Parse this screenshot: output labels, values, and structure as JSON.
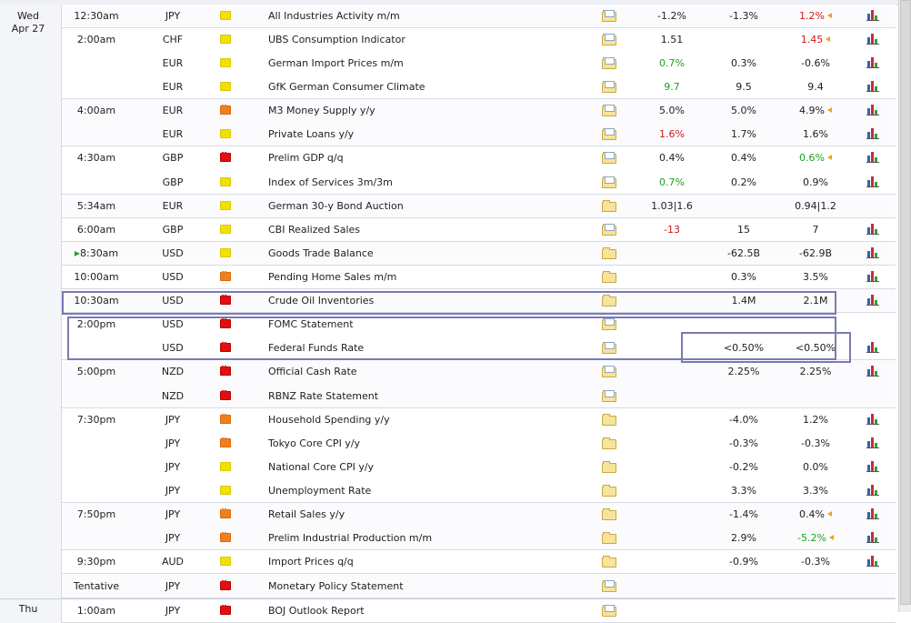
{
  "days": [
    {
      "line1": "Wed",
      "line2": "Apr 27"
    },
    {
      "line1": "Thu",
      "line2": ""
    }
  ],
  "colors": {
    "green": "#1ea01e",
    "red": "#d01818",
    "highlight": "#7a7ab4"
  },
  "icons": {
    "details": "folder-document-icon",
    "chart": "bar-chart-icon",
    "revised": "revised-arrow-icon",
    "live": "play-arrow-icon"
  },
  "events": [
    {
      "time": "12:30am",
      "currency": "JPY",
      "impact": "low",
      "title": "All Industries Activity m/m",
      "doc": true,
      "actual": "-1.2%",
      "forecast": "-1.3%",
      "previous": "1.2%",
      "prev_color": "red",
      "prev_revised": true,
      "chart": true
    },
    {
      "time": "2:00am",
      "currency": "CHF",
      "impact": "low",
      "title": "UBS Consumption Indicator",
      "doc": true,
      "actual": "1.51",
      "forecast": "",
      "previous": "1.45",
      "prev_color": "red",
      "prev_revised": true,
      "chart": true
    },
    {
      "time": "",
      "currency": "EUR",
      "impact": "low",
      "title": "German Import Prices m/m",
      "doc": true,
      "actual": "0.7%",
      "actual_color": "green",
      "forecast": "0.3%",
      "previous": "-0.6%",
      "chart": true
    },
    {
      "time": "",
      "currency": "EUR",
      "impact": "low",
      "title": "GfK German Consumer Climate",
      "doc": true,
      "actual": "9.7",
      "actual_color": "green",
      "forecast": "9.5",
      "previous": "9.4",
      "chart": true
    },
    {
      "time": "4:00am",
      "currency": "EUR",
      "impact": "med",
      "title": "M3 Money Supply y/y",
      "doc": true,
      "actual": "5.0%",
      "forecast": "5.0%",
      "previous": "4.9%",
      "prev_revised": true,
      "chart": true
    },
    {
      "time": "",
      "currency": "EUR",
      "impact": "low",
      "title": "Private Loans y/y",
      "doc": true,
      "actual": "1.6%",
      "actual_color": "red",
      "forecast": "1.7%",
      "previous": "1.6%",
      "chart": true
    },
    {
      "time": "4:30am",
      "currency": "GBP",
      "impact": "high",
      "title": "Prelim GDP q/q",
      "doc": true,
      "actual": "0.4%",
      "forecast": "0.4%",
      "previous": "0.6%",
      "prev_color": "green",
      "prev_revised": true,
      "chart": true
    },
    {
      "time": "",
      "currency": "GBP",
      "impact": "low",
      "title": "Index of Services 3m/3m",
      "doc": true,
      "actual": "0.7%",
      "actual_color": "green",
      "forecast": "0.2%",
      "previous": "0.9%",
      "chart": true
    },
    {
      "time": "5:34am",
      "currency": "EUR",
      "impact": "low",
      "title": "German 30-y Bond Auction",
      "doc": false,
      "actual": "1.03|1.6",
      "forecast": "",
      "previous": "0.94|1.2",
      "chart": false
    },
    {
      "time": "6:00am",
      "currency": "GBP",
      "impact": "low",
      "title": "CBI Realized Sales",
      "doc": true,
      "actual": "-13",
      "actual_color": "red",
      "forecast": "15",
      "previous": "7",
      "chart": true
    },
    {
      "time": "8:30am",
      "time_live": true,
      "currency": "USD",
      "impact": "low",
      "title": "Goods Trade Balance",
      "doc": false,
      "actual": "",
      "forecast": "-62.5B",
      "previous": "-62.9B",
      "chart": true
    },
    {
      "time": "10:00am",
      "currency": "USD",
      "impact": "med",
      "title": "Pending Home Sales m/m",
      "doc": false,
      "actual": "",
      "forecast": "0.3%",
      "previous": "3.5%",
      "chart": true
    },
    {
      "time": "10:30am",
      "currency": "USD",
      "impact": "high",
      "title": "Crude Oil Inventories",
      "doc": false,
      "actual": "",
      "forecast": "1.4M",
      "previous": "2.1M",
      "chart": true
    },
    {
      "time": "2:00pm",
      "currency": "USD",
      "impact": "high",
      "title": "FOMC Statement",
      "doc": true,
      "actual": "",
      "forecast": "",
      "previous": "",
      "chart": false
    },
    {
      "time": "",
      "currency": "USD",
      "impact": "high",
      "title": "Federal Funds Rate",
      "doc": true,
      "actual": "",
      "forecast": "<0.50%",
      "previous": "<0.50%",
      "chart": true
    },
    {
      "time": "5:00pm",
      "currency": "NZD",
      "impact": "high",
      "title": "Official Cash Rate",
      "doc": true,
      "actual": "",
      "forecast": "2.25%",
      "previous": "2.25%",
      "chart": true
    },
    {
      "time": "",
      "currency": "NZD",
      "impact": "high",
      "title": "RBNZ Rate Statement",
      "doc": true,
      "actual": "",
      "forecast": "",
      "previous": "",
      "chart": false
    },
    {
      "time": "7:30pm",
      "currency": "JPY",
      "impact": "med",
      "title": "Household Spending y/y",
      "doc": false,
      "actual": "",
      "forecast": "-4.0%",
      "previous": "1.2%",
      "chart": true
    },
    {
      "time": "",
      "currency": "JPY",
      "impact": "med",
      "title": "Tokyo Core CPI y/y",
      "doc": false,
      "actual": "",
      "forecast": "-0.3%",
      "previous": "-0.3%",
      "chart": true
    },
    {
      "time": "",
      "currency": "JPY",
      "impact": "low",
      "title": "National Core CPI y/y",
      "doc": false,
      "actual": "",
      "forecast": "-0.2%",
      "previous": "0.0%",
      "chart": true
    },
    {
      "time": "",
      "currency": "JPY",
      "impact": "low",
      "title": "Unemployment Rate",
      "doc": false,
      "actual": "",
      "forecast": "3.3%",
      "previous": "3.3%",
      "chart": true
    },
    {
      "time": "7:50pm",
      "currency": "JPY",
      "impact": "med",
      "title": "Retail Sales y/y",
      "doc": false,
      "actual": "",
      "forecast": "-1.4%",
      "previous": "0.4%",
      "prev_revised": true,
      "chart": true
    },
    {
      "time": "",
      "currency": "JPY",
      "impact": "med",
      "title": "Prelim Industrial Production m/m",
      "doc": false,
      "actual": "",
      "forecast": "2.9%",
      "previous": "-5.2%",
      "prev_color": "green",
      "prev_revised": true,
      "chart": true
    },
    {
      "time": "9:30pm",
      "currency": "AUD",
      "impact": "low",
      "title": "Import Prices q/q",
      "doc": false,
      "actual": "",
      "forecast": "-0.9%",
      "previous": "-0.3%",
      "chart": true
    },
    {
      "time": "Tentative",
      "currency": "JPY",
      "impact": "high",
      "title": "Monetary Policy Statement",
      "doc": true,
      "actual": "",
      "forecast": "",
      "previous": "",
      "chart": false
    },
    {
      "time": "1:00am",
      "currency": "JPY",
      "impact": "high",
      "title": "BOJ Outlook Report",
      "doc": true,
      "actual": "",
      "forecast": "",
      "previous": "",
      "chart": false
    }
  ]
}
